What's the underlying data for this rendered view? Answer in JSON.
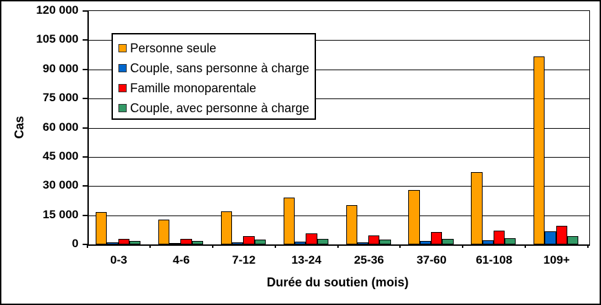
{
  "chart_data": {
    "type": "bar",
    "title": "",
    "xlabel": "Durée du soutien (mois)",
    "ylabel": "Cas",
    "categories": [
      "0-3",
      "4-6",
      "7-12",
      "13-24",
      "25-36",
      "37-60",
      "61-108",
      "109+"
    ],
    "series": [
      {
        "name": "Personne seule",
        "color": "#FFA000",
        "values": [
          16800,
          12700,
          17000,
          24100,
          20200,
          28000,
          37200,
          96800
        ]
      },
      {
        "name": "Couple, sans personne à charge",
        "color": "#0066CC",
        "values": [
          900,
          400,
          1100,
          1300,
          1200,
          1800,
          2100,
          6900
        ]
      },
      {
        "name": "Famille monoparentale",
        "color": "#FF0000",
        "values": [
          3000,
          2700,
          4200,
          5800,
          4500,
          6400,
          7100,
          9600
        ]
      },
      {
        "name": "Couple, avec personne à charge",
        "color": "#339966",
        "values": [
          1700,
          1600,
          2400,
          3000,
          2400,
          2900,
          3300,
          4300
        ]
      }
    ],
    "ylim": [
      0,
      120000
    ],
    "ytick_step": 15000,
    "ytick_labels": [
      "0",
      "15 000",
      "30 000",
      "45 000",
      "60 000",
      "75 000",
      "90 000",
      "105 000",
      "120 000"
    ],
    "grid": true,
    "legend_position": "top-left-inside",
    "axis_color": "#000000",
    "background_color": "#FFFFFF"
  }
}
